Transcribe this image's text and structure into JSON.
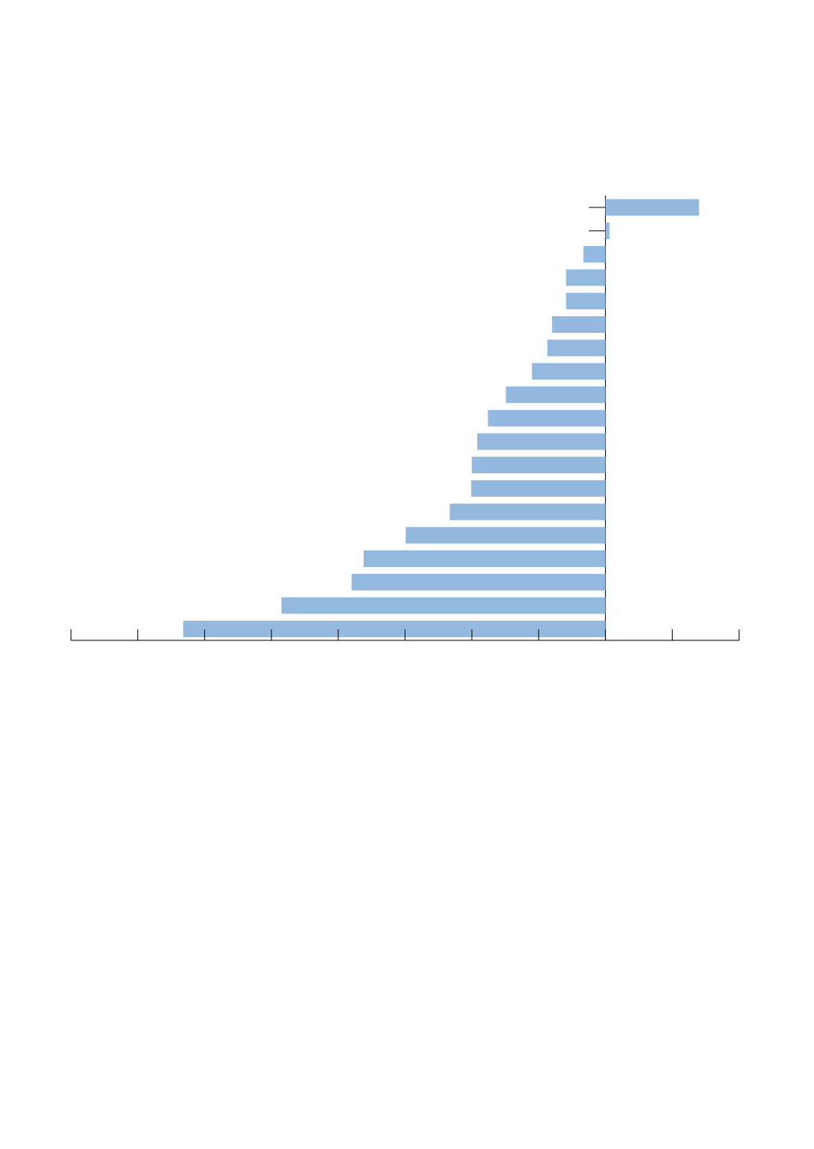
{
  "chart_data": {
    "type": "bar",
    "orientation": "horizontal",
    "title": "",
    "xlabel": "",
    "ylabel": "",
    "xlim": [
      -8,
      2
    ],
    "x_tick_step": 1,
    "grid": false,
    "legend": "none",
    "bar_color": "#95b8de",
    "axis_color": "#000000",
    "values": [
      1.4,
      0.06,
      -0.33,
      -0.59,
      -0.59,
      -0.8,
      -0.87,
      -1.1,
      -1.49,
      -1.76,
      -1.92,
      -2.0,
      -2.01,
      -2.33,
      -2.99,
      -3.62,
      -3.8,
      -4.85,
      -6.32
    ]
  }
}
